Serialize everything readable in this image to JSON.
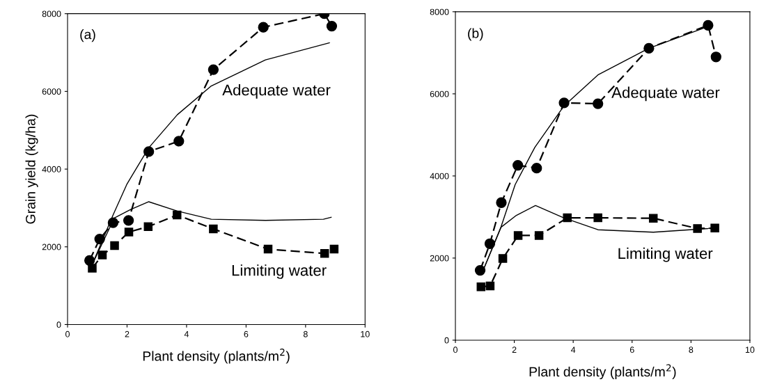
{
  "chart_data": [
    {
      "type": "line",
      "xlabel": "Plant density (plants/m$^{2}$)",
      "ylabel": "Grain yield (kg/ha)",
      "xlim": [
        0,
        10
      ],
      "ylim": [
        0,
        8000
      ],
      "xticks": [
        0,
        2,
        4,
        6,
        8,
        10
      ],
      "yticks": [
        0,
        2000,
        4000,
        6000,
        8000
      ],
      "grid": false,
      "annotations": [
        "(a)",
        "Adequate water",
        "Limiting water"
      ],
      "series": [
        {
          "color": "#000000",
          "marker": "circle",
          "line_style": "dashed",
          "x": [
            0.74,
            1.08,
            1.53,
            2.05,
            2.73,
            3.74,
            4.9,
            6.58,
            8.63,
            8.88
          ],
          "values": [
            1650,
            2200,
            2620,
            2680,
            4450,
            4720,
            6560,
            7650,
            8000,
            7680
          ]
        },
        {
          "color": "#000000",
          "marker": "square",
          "line_style": "dashed",
          "x": [
            0.83,
            1.17,
            1.58,
            2.06,
            2.71,
            3.68,
            4.9,
            6.74,
            8.64,
            8.96
          ],
          "values": [
            1450,
            1790,
            2030,
            2380,
            2520,
            2820,
            2460,
            1940,
            1830,
            1940
          ]
        },
        {
          "color": "#000000",
          "marker": "none",
          "line_style": "solid",
          "x": [
            0.82,
            1.53,
            2.0,
            2.73,
            3.69,
            4.83,
            6.65,
            8.8
          ],
          "values": [
            1530,
            2820,
            3620,
            4550,
            5400,
            6140,
            6810,
            7250
          ]
        },
        {
          "color": "#000000",
          "marker": "none",
          "line_style": "solid",
          "x": [
            0.82,
            1.57,
            2.12,
            2.73,
            3.69,
            4.83,
            6.65,
            8.6,
            8.86
          ],
          "values": [
            1530,
            2740,
            2960,
            3160,
            2920,
            2710,
            2680,
            2710,
            2760
          ]
        }
      ]
    },
    {
      "type": "line",
      "xlabel": "Plant density (plants/m$^{2}$)",
      "xlim": [
        0,
        10
      ],
      "ylim": [
        0,
        8000
      ],
      "xticks": [
        0,
        2,
        4,
        6,
        8,
        10
      ],
      "yticks": [
        0,
        2000,
        4000,
        6000,
        8000
      ],
      "grid": false,
      "annotations": [
        "(b)",
        "Adequate water",
        "Limiting water"
      ],
      "series": [
        {
          "color": "#000000",
          "marker": "circle",
          "line_style": "dashed",
          "x": [
            0.84,
            1.17,
            1.56,
            2.12,
            2.76,
            3.69,
            4.84,
            6.57,
            8.58,
            8.85
          ],
          "values": [
            1700,
            2350,
            3350,
            4260,
            4190,
            5780,
            5760,
            7110,
            7670,
            6900
          ]
        },
        {
          "color": "#000000",
          "marker": "square",
          "line_style": "dashed",
          "x": [
            0.87,
            1.18,
            1.61,
            2.13,
            2.84,
            3.8,
            4.84,
            6.72,
            8.22,
            8.81
          ],
          "values": [
            1300,
            1320,
            1990,
            2550,
            2550,
            2980,
            2980,
            2970,
            2720,
            2730
          ]
        },
        {
          "color": "#000000",
          "marker": "none",
          "line_style": "solid",
          "x": [
            0.89,
            1.55,
            2.03,
            2.7,
            3.68,
            4.84,
            6.57,
            8.58
          ],
          "values": [
            1610,
            2760,
            3790,
            4700,
            5700,
            6460,
            7110,
            7640
          ]
        },
        {
          "color": "#000000",
          "marker": "none",
          "line_style": "solid",
          "x": [
            0.89,
            1.55,
            2.07,
            2.72,
            3.68,
            4.84,
            6.72,
            8.58,
            8.83
          ],
          "values": [
            1610,
            2750,
            3040,
            3280,
            2980,
            2690,
            2630,
            2720,
            2750
          ]
        }
      ]
    }
  ]
}
